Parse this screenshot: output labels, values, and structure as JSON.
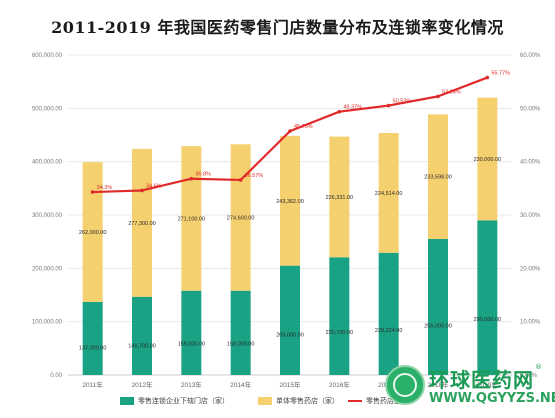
{
  "title": "2011-2019 年我国医药零售门店数量分布及连锁率变化情况",
  "colors": {
    "chain": "#1aa284",
    "single": "#f5d06e",
    "rate": "#e02a2a"
  },
  "chart_data": {
    "type": "bar",
    "stacked": true,
    "title": "2011-2019 年我国医药零售门店数量分布及连锁率变化情况",
    "categories": [
      "2011年",
      "2012年",
      "2013年",
      "2014年",
      "2015年",
      "2016年",
      "2017年",
      "2018年",
      "2019年"
    ],
    "series": [
      {
        "name": "零售连锁企业下辖门店（家）",
        "values": [
          137000,
          146700,
          158000,
          158000,
          205000,
          220700,
          229224,
          255000,
          290000
        ],
        "labels": [
          "137,000.00",
          "146,700.00",
          "158,000.00",
          "158,000.00",
          "205,000.00",
          "220,700.00",
          "229,224.00",
          "255,000.00",
          "290,000.00"
        ]
      },
      {
        "name": "单体零售药店（家）",
        "values": [
          262000,
          277300,
          271100,
          274600,
          243362,
          226331,
          224514,
          233598,
          230000
        ],
        "labels": [
          "262,000.00",
          "277,300.00",
          "271,100.00",
          "274,600.00",
          "243,362.00",
          "226,331.00",
          "224,514.00",
          "233,598.00",
          "230,000.00"
        ]
      },
      {
        "name": "零售药店连锁率",
        "axis": "right",
        "values": [
          34.3,
          34.6,
          36.8,
          36.57,
          45.73,
          49.37,
          50.52,
          52.24,
          55.77
        ],
        "labels": [
          "34.3%",
          "34.6%",
          "36.8%",
          "36.57%",
          "45.73%",
          "49.37%",
          "50.52%",
          "52.24%",
          "55.77%"
        ]
      }
    ],
    "ylim": [
      0,
      600000
    ],
    "y_ticks": [
      "0.00",
      "100,000.00",
      "200,000.00",
      "300,000.00",
      "400,000.00",
      "500,000.00",
      "600,000.00"
    ],
    "y2lim": [
      0,
      60
    ],
    "y2_ticks": [
      "0.00%",
      "10.00%",
      "20.00%",
      "30.00%",
      "40.00%",
      "50.00%",
      "60.00%"
    ],
    "legend_position": "bottom-left"
  },
  "watermark": {
    "name": "环球医药网",
    "url": "WWW.QGYYZS.NET",
    "mark": "®"
  }
}
